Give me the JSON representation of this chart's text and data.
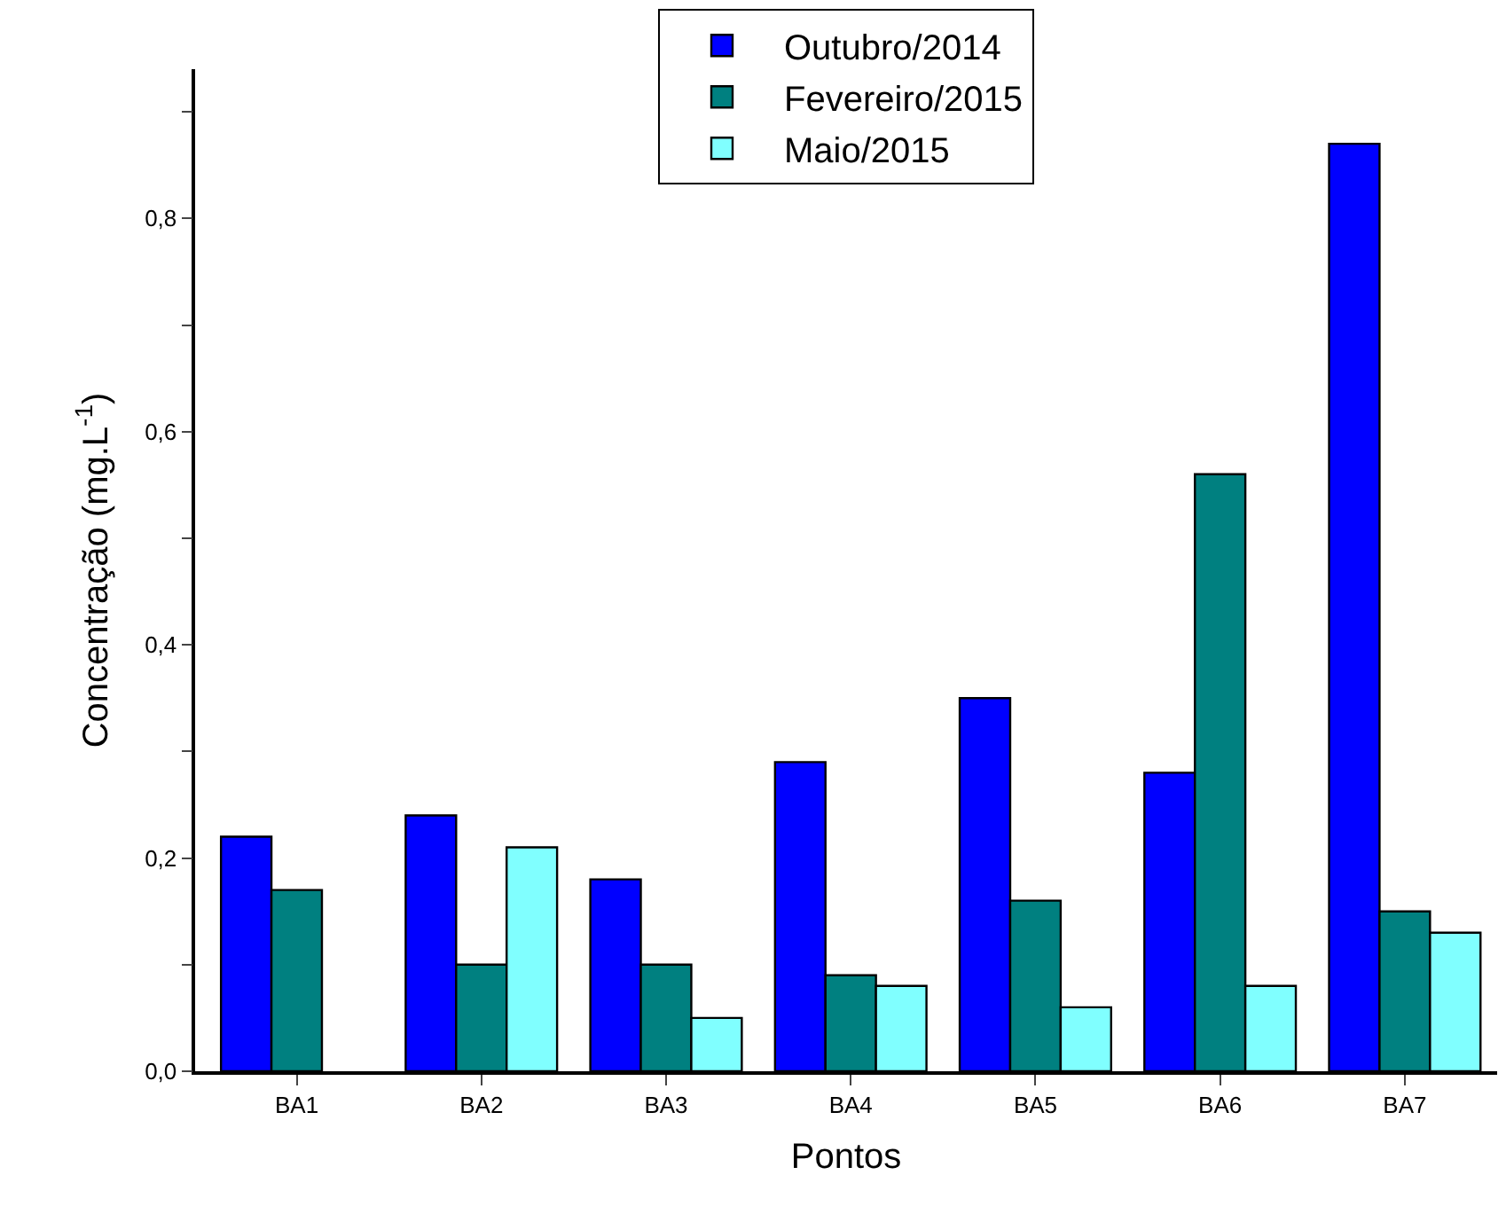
{
  "chart_data": {
    "type": "bar",
    "xlabel": "Pontos",
    "ylabel": "Concentração (mg.L$^{-1}$)",
    "categories": [
      "BA1",
      "BA2",
      "BA3",
      "BA4",
      "BA5",
      "BA6",
      "BA7"
    ],
    "series": [
      {
        "name": "Outubro/2014",
        "color": "#0000ff",
        "values": [
          0.22,
          0.24,
          0.18,
          0.29,
          0.35,
          0.28,
          0.87
        ]
      },
      {
        "name": "Fevereiro/2015",
        "color": "#008080",
        "values": [
          0.17,
          0.1,
          0.1,
          0.09,
          0.16,
          0.56,
          0.15
        ]
      },
      {
        "name": "Maio/2015",
        "color": "#80ffff",
        "values": [
          null,
          0.21,
          0.05,
          0.08,
          0.06,
          0.08,
          0.13
        ]
      }
    ],
    "ylim": [
      0,
      0.94
    ],
    "yticks": [
      {
        "value": 0,
        "label": "0,0"
      },
      {
        "value": 0.1,
        "label": null
      },
      {
        "value": 0.2,
        "label": "0,2"
      },
      {
        "value": 0.3,
        "label": null
      },
      {
        "value": 0.4,
        "label": "0,4"
      },
      {
        "value": 0.5,
        "label": null
      },
      {
        "value": 0.6,
        "label": "0,6"
      },
      {
        "value": 0.7,
        "label": null
      },
      {
        "value": 0.8,
        "label": "0,8"
      },
      {
        "value": 0.9,
        "label": null
      }
    ],
    "legend": "top"
  }
}
